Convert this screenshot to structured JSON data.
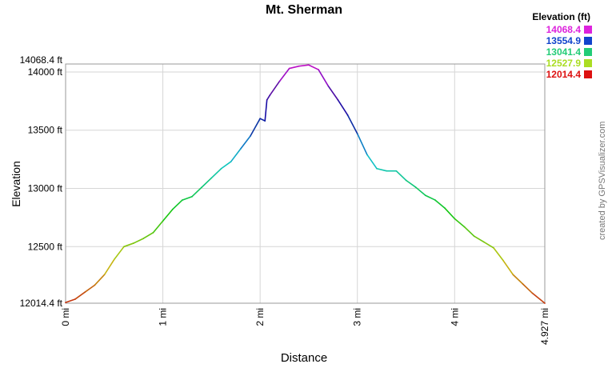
{
  "chart_data": {
    "type": "line",
    "title": "Mt. Sherman",
    "xlabel": "Distance",
    "ylabel": "Elevation",
    "x_unit": "mi",
    "y_unit": "ft",
    "xlim": [
      0,
      4.927
    ],
    "ylim": [
      12014.4,
      14068.4
    ],
    "grid": true,
    "legend_placement": "top-right",
    "legend_title": "Elevation (ft)",
    "legend_entries": [
      {
        "label": "14068.4",
        "color": "#dd22dd"
      },
      {
        "label": "13554.9",
        "color": "#1144cc"
      },
      {
        "label": "13041.4",
        "color": "#22cc77"
      },
      {
        "label": "12527.9",
        "color": "#aadd22"
      },
      {
        "label": "12014.4",
        "color": "#dd1111"
      }
    ],
    "x_ticks": [
      {
        "value": 0,
        "label": "0 mi"
      },
      {
        "value": 1,
        "label": "1 mi"
      },
      {
        "value": 2,
        "label": "2 mi"
      },
      {
        "value": 3,
        "label": "3 mi"
      },
      {
        "value": 4,
        "label": "4 mi"
      },
      {
        "value": 4.927,
        "label": "4.927 mi"
      }
    ],
    "y_ticks": [
      {
        "value": 12014.4,
        "label": "12014.4 ft"
      },
      {
        "value": 12500,
        "label": "12500 ft"
      },
      {
        "value": 13000,
        "label": "13000 ft"
      },
      {
        "value": 13500,
        "label": "13500 ft"
      },
      {
        "value": 14000,
        "label": "14000 ft"
      },
      {
        "value": 14068.4,
        "label": "14068.4 ft"
      }
    ],
    "credit": "created by GPSVisualizer.com",
    "series": [
      {
        "x": [
          0,
          0.1,
          0.2,
          0.3,
          0.4,
          0.5,
          0.6,
          0.7,
          0.8,
          0.9,
          1.0,
          1.1,
          1.2,
          1.3,
          1.4,
          1.5,
          1.6,
          1.7,
          1.8,
          1.9,
          2.0,
          2.05,
          2.07,
          2.1,
          2.2,
          2.3,
          2.4,
          2.5,
          2.6,
          2.7,
          2.8,
          2.9,
          3.0,
          3.1,
          3.2,
          3.3,
          3.4,
          3.5,
          3.6,
          3.7,
          3.8,
          3.9,
          4.0,
          4.1,
          4.2,
          4.3,
          4.4,
          4.5,
          4.6,
          4.7,
          4.8,
          4.927
        ],
        "y": [
          12020,
          12050,
          12110,
          12170,
          12260,
          12390,
          12500,
          12530,
          12570,
          12620,
          12720,
          12820,
          12900,
          12930,
          13010,
          13090,
          13170,
          13230,
          13340,
          13450,
          13600,
          13580,
          13760,
          13800,
          13920,
          14030,
          14050,
          14060,
          14020,
          13880,
          13760,
          13630,
          13470,
          13290,
          13170,
          13150,
          13150,
          13070,
          13010,
          12940,
          12900,
          12830,
          12740,
          12670,
          12590,
          12540,
          12490,
          12380,
          12260,
          12180,
          12100,
          12014.4
        ]
      }
    ]
  }
}
